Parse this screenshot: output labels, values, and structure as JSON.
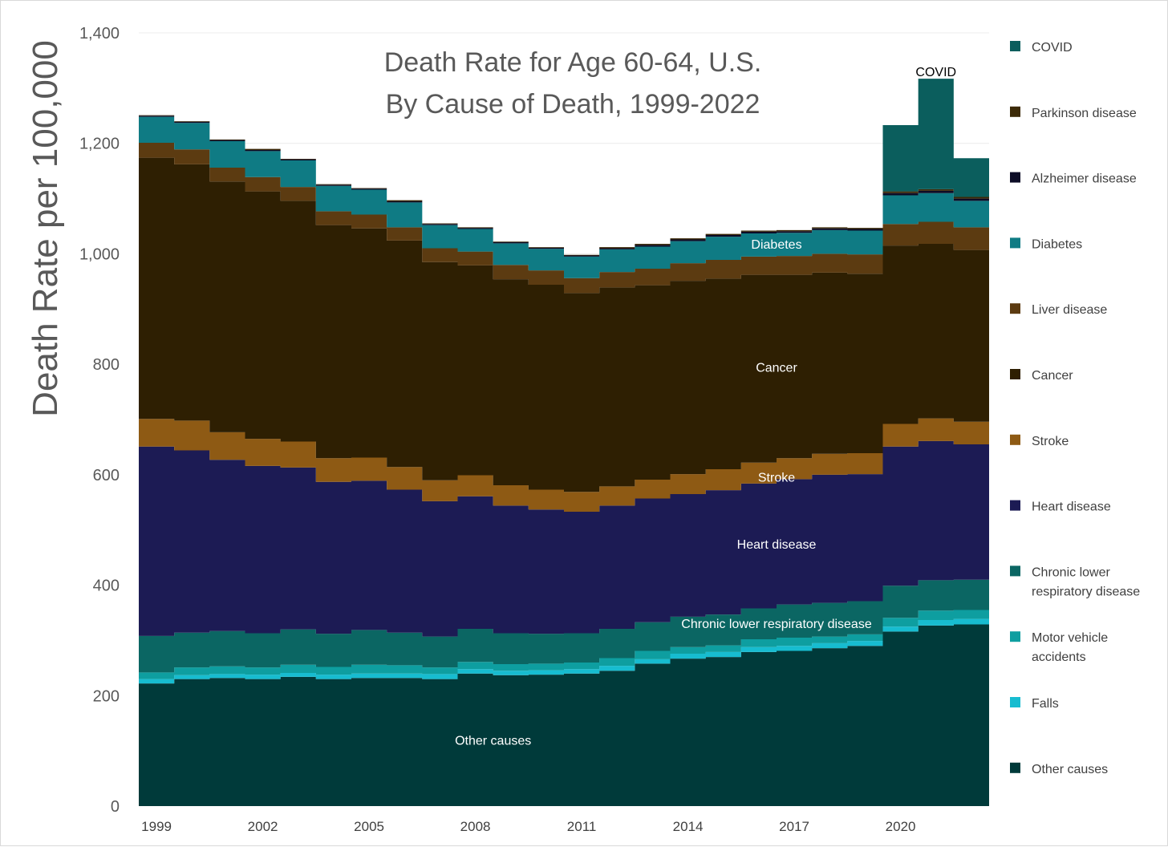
{
  "chart_data": {
    "type": "area",
    "title": "Death Rate for Age 60-64, U.S.",
    "subtitle": "By Cause of Death, 1999-2022",
    "ylabel": "Death Rate per 100,000",
    "xlabel": "",
    "ylim": [
      0,
      1400
    ],
    "y_ticks": [
      "0",
      "200",
      "400",
      "600",
      "800",
      "1,000",
      "1,200",
      "1,400"
    ],
    "y_tick_values": [
      0,
      200,
      400,
      600,
      800,
      1000,
      1200,
      1400
    ],
    "x_tick_labels": [
      "1999",
      "2002",
      "2005",
      "2008",
      "2011",
      "2014",
      "2017",
      "2020"
    ],
    "x": [
      1999,
      2000,
      2001,
      2002,
      2003,
      2004,
      2005,
      2006,
      2007,
      2008,
      2009,
      2010,
      2011,
      2012,
      2013,
      2014,
      2015,
      2016,
      2017,
      2018,
      2019,
      2020,
      2021,
      2022
    ],
    "grid": true,
    "legend_position": "right",
    "series": [
      {
        "name": "Other causes",
        "color": "#003a3a",
        "values": [
          222,
          230,
          232,
          230,
          234,
          230,
          232,
          232,
          230,
          240,
          237,
          238,
          240,
          245,
          258,
          267,
          270,
          279,
          281,
          286,
          290,
          316,
          327,
          329
        ]
      },
      {
        "name": "Falls",
        "color": "#17bcd0",
        "values": [
          8,
          7,
          7,
          8,
          7,
          8,
          8,
          8,
          9,
          8,
          8,
          8,
          8,
          9,
          8,
          9,
          9,
          9,
          9,
          9,
          9,
          9,
          10,
          10
        ]
      },
      {
        "name": "Motor vehicle accidents",
        "color": "#0e9ea0",
        "values": [
          12,
          14,
          14,
          13,
          15,
          14,
          16,
          15,
          12,
          13,
          12,
          12,
          12,
          14,
          15,
          12,
          12,
          14,
          15,
          12,
          12,
          16,
          17,
          16
        ]
      },
      {
        "name": "Chronic lower respiratory disease",
        "color": "#0b6663",
        "values": [
          66,
          63,
          64,
          62,
          64,
          60,
          63,
          59,
          56,
          60,
          56,
          54,
          53,
          53,
          52,
          55,
          56,
          56,
          60,
          61,
          60,
          58,
          55,
          55
        ]
      },
      {
        "name": "Heart disease",
        "color": "#1c1b54",
        "values": [
          343,
          330,
          310,
          303,
          293,
          275,
          270,
          259,
          245,
          240,
          231,
          225,
          220,
          223,
          224,
          222,
          225,
          226,
          227,
          232,
          230,
          252,
          252,
          245
        ]
      },
      {
        "name": "Stroke",
        "color": "#8e5a14",
        "values": [
          50,
          54,
          50,
          49,
          47,
          43,
          42,
          41,
          38,
          38,
          37,
          36,
          36,
          35,
          34,
          36,
          38,
          38,
          38,
          38,
          38,
          41,
          41,
          41
        ]
      },
      {
        "name": "Cancer",
        "color": "#2e1f02",
        "values": [
          473,
          464,
          454,
          448,
          436,
          422,
          415,
          410,
          395,
          380,
          373,
          371,
          360,
          360,
          352,
          350,
          345,
          340,
          332,
          328,
          325,
          323,
          316,
          311
        ]
      },
      {
        "name": "Liver disease",
        "color": "#5c3b11",
        "values": [
          27,
          27,
          25,
          26,
          25,
          25,
          25,
          24,
          25,
          25,
          26,
          26,
          27,
          28,
          30,
          32,
          34,
          33,
          34,
          34,
          35,
          39,
          40,
          41
        ]
      },
      {
        "name": "Diabetes",
        "color": "#0f7b84",
        "values": [
          47,
          48,
          48,
          47,
          48,
          46,
          45,
          45,
          42,
          41,
          39,
          39,
          39,
          41,
          40,
          40,
          42,
          42,
          42,
          43,
          43,
          52,
          52,
          48
        ]
      },
      {
        "name": "Alzheimer disease",
        "color": "#0c0c26",
        "values": [
          2,
          2,
          2,
          2,
          2,
          2,
          2,
          2,
          2,
          2,
          2,
          2,
          2,
          2,
          3,
          3,
          3,
          3,
          3,
          3,
          3,
          4,
          4,
          4
        ]
      },
      {
        "name": "Parkinson disease",
        "color": "#3c2a08",
        "values": [
          1,
          1,
          1,
          2,
          1,
          1,
          1,
          2,
          1,
          1,
          1,
          1,
          1,
          2,
          2,
          2,
          2,
          2,
          2,
          2,
          2,
          3,
          3,
          3
        ]
      },
      {
        "name": "COVID",
        "color": "#0b5e5d",
        "values": [
          0,
          0,
          0,
          0,
          0,
          0,
          0,
          0,
          0,
          0,
          0,
          0,
          0,
          0,
          0,
          0,
          0,
          0,
          0,
          0,
          0,
          120,
          200,
          70
        ]
      }
    ],
    "annotations": [
      {
        "text": "Other causes",
        "year": 2008.5,
        "value": 120,
        "size": "large",
        "color": "#ffffff"
      },
      {
        "text": "Chronic lower respiratory disease",
        "year": 2016.5,
        "value": 331,
        "size": "small",
        "color": "#ffffff"
      },
      {
        "text": "Heart disease",
        "year": 2016.5,
        "value": 475,
        "size": "small",
        "color": "#ffffff"
      },
      {
        "text": "Stroke",
        "year": 2016.5,
        "value": 596,
        "size": "small",
        "color": "#ffffff"
      },
      {
        "text": "Cancer",
        "year": 2016.5,
        "value": 795,
        "size": "small",
        "color": "#ffffff"
      },
      {
        "text": "Diabetes",
        "year": 2016.5,
        "value": 1018,
        "size": "small",
        "color": "#ffffff"
      },
      {
        "text": "COVID",
        "year": 2021,
        "value": 1330,
        "size": "medium",
        "color": "#000000"
      }
    ],
    "legend": [
      {
        "label": "COVID",
        "color": "#0b5e5d"
      },
      {
        "label": "Parkinson disease",
        "color": "#3c2a08"
      },
      {
        "label": "Alzheimer disease",
        "color": "#0c0c26"
      },
      {
        "label": "Diabetes",
        "color": "#0f7b84"
      },
      {
        "label": "Liver disease",
        "color": "#5c3b11"
      },
      {
        "label": "Cancer",
        "color": "#2e1f02"
      },
      {
        "label": "Stroke",
        "color": "#8e5a14"
      },
      {
        "label": "Heart disease",
        "color": "#1c1b54"
      },
      {
        "label": "Chronic lower respiratory disease",
        "color": "#0b6663",
        "lines": [
          "Chronic lower",
          "respiratory disease"
        ]
      },
      {
        "label": "Motor vehicle accidents",
        "color": "#0e9ea0",
        "lines": [
          "Motor vehicle",
          "accidents"
        ]
      },
      {
        "label": "Falls",
        "color": "#17bcd0"
      },
      {
        "label": "Other causes",
        "color": "#003a3a"
      }
    ]
  }
}
